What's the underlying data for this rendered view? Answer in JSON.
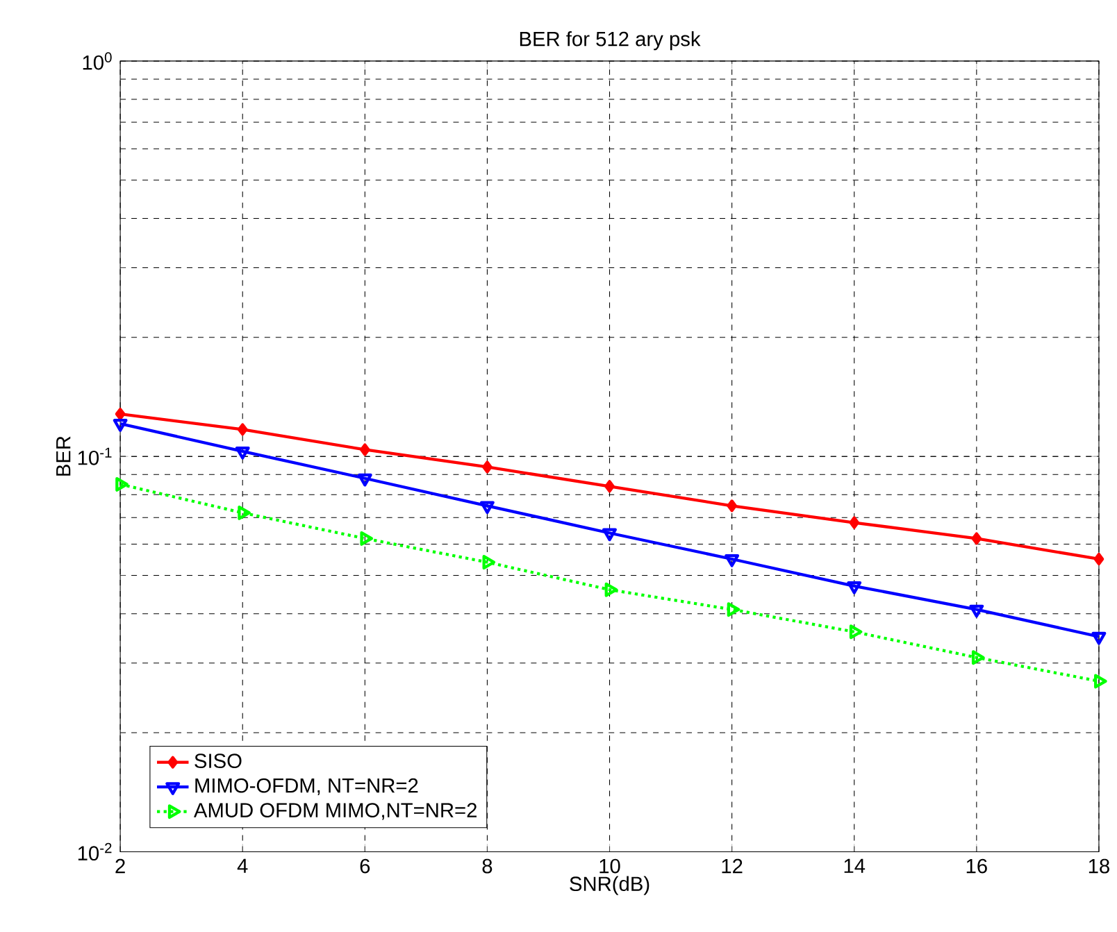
{
  "chart_data": {
    "type": "line",
    "title": "BER for 512 ary psk",
    "xlabel": "SNR(dB)",
    "ylabel": "BER",
    "log": "y",
    "grid": true,
    "legend": "bottom left",
    "x": [
      2,
      4,
      6,
      8,
      10,
      12,
      14,
      16,
      18
    ],
    "xlim": [
      2,
      18
    ],
    "xticks": [
      2,
      4,
      6,
      8,
      10,
      12,
      14,
      16,
      18
    ],
    "ylim": [
      0.01,
      1
    ],
    "yticks": [
      {
        "value": 0.01,
        "label": "10$^{-2}$"
      },
      {
        "value": 0.1,
        "label": "10$^{-1}$"
      },
      {
        "value": 1,
        "label": "10$^{0}$"
      }
    ],
    "series": [
      {
        "name": "SISO",
        "color": "#ff0000",
        "marker": "diamond",
        "line_style": "solid",
        "values": [
          0.128,
          0.117,
          0.104,
          0.094,
          0.084,
          0.075,
          0.068,
          0.062,
          0.055
        ]
      },
      {
        "name": "MIMO-OFDM, NT=NR=2",
        "color": "#0000ff",
        "marker": "triangle-down",
        "line_style": "solid",
        "values": [
          0.121,
          0.103,
          0.088,
          0.075,
          0.064,
          0.055,
          0.047,
          0.041,
          0.035
        ]
      },
      {
        "name": "AMUD OFDM MIMO,NT=NR=2",
        "color": "#00ff00",
        "marker": "triangle-right",
        "line_style": "dotted",
        "values": [
          0.085,
          0.072,
          0.062,
          0.054,
          0.046,
          0.041,
          0.036,
          0.031,
          0.027
        ]
      }
    ]
  }
}
